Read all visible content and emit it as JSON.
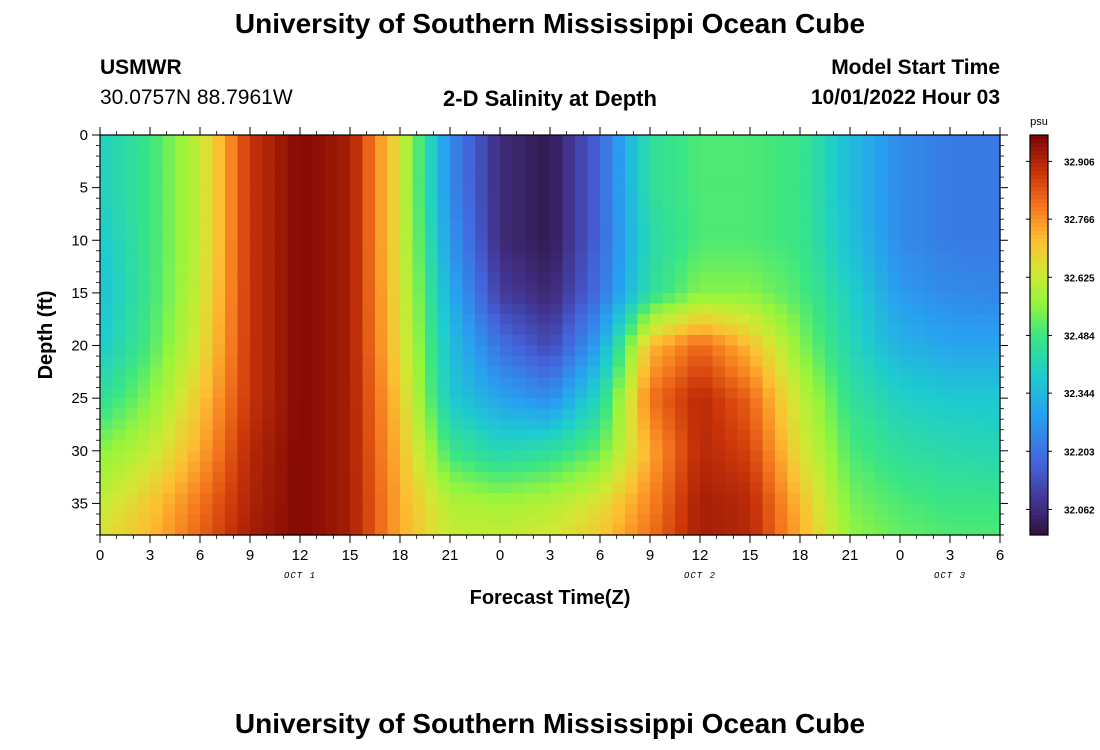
{
  "header": {
    "title": "University of Southern Mississippi Ocean Cube",
    "station": "USMWR",
    "coords": "30.0757N  88.7961W",
    "plot_title": "2-D Salinity at Depth",
    "start_label": "Model Start Time",
    "start_value": "10/01/2022 Hour 03"
  },
  "footer": {
    "title": "University of Southern Mississippi Ocean Cube"
  },
  "chart_data": {
    "type": "heatmap",
    "title": "2-D Salinity at Depth",
    "xlabel": "Forecast Time(Z)",
    "ylabel": "Depth (ft)",
    "x_tick_labels": [
      "0",
      "3",
      "6",
      "9",
      "12",
      "15",
      "18",
      "21",
      "0",
      "3",
      "6",
      "9",
      "12",
      "15",
      "18",
      "21",
      "0",
      "3",
      "6"
    ],
    "x_range_hours": [
      0,
      54
    ],
    "date_labels": [
      {
        "text": "OCT 1",
        "hour": 12
      },
      {
        "text": "OCT 2",
        "hour": 36
      },
      {
        "text": "OCT 3",
        "hour": 51
      }
    ],
    "y_ticks": [
      0,
      5,
      10,
      15,
      20,
      25,
      30,
      35
    ],
    "y_range_ft": [
      0,
      38
    ],
    "y_reversed": true,
    "colorbar": {
      "unit": "psu",
      "min": 32.0,
      "max": 32.97,
      "tick_labels": [
        "32.906",
        "32.766",
        "32.625",
        "32.484",
        "32.344",
        "32.203",
        "32.062"
      ],
      "tick_values": [
        32.906,
        32.766,
        32.625,
        32.484,
        32.344,
        32.203,
        32.062
      ]
    },
    "salinity_psu": {
      "hours": [
        0,
        3,
        6,
        9,
        12,
        15,
        18,
        21,
        24,
        27,
        30,
        33,
        36,
        39,
        42,
        45,
        48,
        51,
        54
      ],
      "depths_ft": [
        0,
        5,
        10,
        15,
        20,
        25,
        30,
        35,
        38
      ],
      "values": [
        [
          32.4,
          32.48,
          32.62,
          32.88,
          32.96,
          32.92,
          32.65,
          32.25,
          32.06,
          32.02,
          32.18,
          32.45,
          32.5,
          32.5,
          32.48,
          32.35,
          32.25,
          32.22,
          32.22
        ],
        [
          32.4,
          32.48,
          32.62,
          32.88,
          32.96,
          32.92,
          32.65,
          32.25,
          32.06,
          32.02,
          32.18,
          32.45,
          32.5,
          32.5,
          32.48,
          32.35,
          32.25,
          32.22,
          32.22
        ],
        [
          32.38,
          32.48,
          32.62,
          32.88,
          32.96,
          32.92,
          32.65,
          32.28,
          32.06,
          32.02,
          32.18,
          32.43,
          32.5,
          32.5,
          32.48,
          32.36,
          32.25,
          32.22,
          32.22
        ],
        [
          32.36,
          32.48,
          32.63,
          32.88,
          32.96,
          32.92,
          32.66,
          32.32,
          32.1,
          32.05,
          32.2,
          32.45,
          32.55,
          32.55,
          32.5,
          32.4,
          32.28,
          32.25,
          32.24
        ],
        [
          32.38,
          32.5,
          32.65,
          32.88,
          32.96,
          32.92,
          32.67,
          32.36,
          32.2,
          32.12,
          32.3,
          32.72,
          32.82,
          32.72,
          32.55,
          32.42,
          32.33,
          32.3,
          32.3
        ],
        [
          32.45,
          32.55,
          32.7,
          32.88,
          32.96,
          32.92,
          32.7,
          32.38,
          32.3,
          32.25,
          32.42,
          32.8,
          32.9,
          32.82,
          32.62,
          32.46,
          32.4,
          32.38,
          32.38
        ],
        [
          32.55,
          32.62,
          32.74,
          32.9,
          32.96,
          32.92,
          32.72,
          32.48,
          32.42,
          32.45,
          32.52,
          32.74,
          32.9,
          32.86,
          32.66,
          32.5,
          32.45,
          32.43,
          32.42
        ],
        [
          32.62,
          32.7,
          32.8,
          32.91,
          32.96,
          32.92,
          32.74,
          32.6,
          32.58,
          32.6,
          32.66,
          32.78,
          32.92,
          32.9,
          32.72,
          32.54,
          32.5,
          32.48,
          32.48
        ],
        [
          32.65,
          32.72,
          32.82,
          32.92,
          32.96,
          32.92,
          32.74,
          32.62,
          32.62,
          32.64,
          32.7,
          32.8,
          32.92,
          32.9,
          32.74,
          32.56,
          32.52,
          32.5,
          32.5
        ]
      ]
    }
  }
}
